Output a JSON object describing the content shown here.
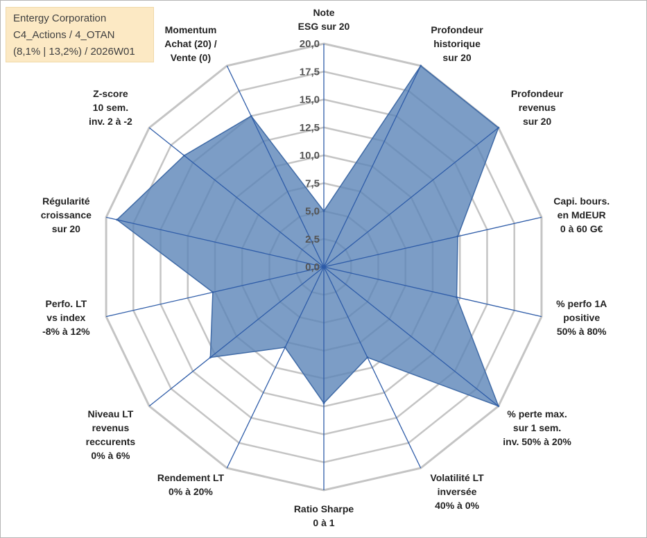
{
  "info": {
    "line1": "Entergy Corporation",
    "line2": "C4_Actions / 4_OTAN",
    "line3": "(8,1% | 13,2%) / 2026W01"
  },
  "colors": {
    "fill": "#5b84b8",
    "stroke": "#3f6aa6",
    "grid": "#c4c4c4",
    "spoke": "#2e5ca8"
  },
  "chart_data": {
    "type": "radar",
    "title": "",
    "range": [
      0,
      20
    ],
    "ticks": [
      "0,0",
      "2,5",
      "5,0",
      "7,5",
      "10,0",
      "12,5",
      "15,0",
      "17,5",
      "20,0"
    ],
    "tick_values": [
      0,
      2.5,
      5,
      7.5,
      10,
      12.5,
      15,
      17.5,
      20
    ],
    "axes": [
      {
        "label": [
          "Note",
          "ESG sur 20"
        ],
        "value": 5.0
      },
      {
        "label": [
          "Profondeur",
          "historique",
          "sur 20"
        ],
        "value": 20.0
      },
      {
        "label": [
          "Profondeur",
          "revenus",
          "sur 20"
        ],
        "value": 20.0
      },
      {
        "label": [
          "Capi. bours.",
          "en MdEUR",
          "0 à 60 G€"
        ],
        "value": 12.3
      },
      {
        "label": [
          "% perfo 1A",
          "positive",
          "50% à 80%"
        ],
        "value": 12.2
      },
      {
        "label": [
          "% perte max.",
          "sur 1 sem.",
          "inv. 50% à 20%"
        ],
        "value": 20.0
      },
      {
        "label": [
          "Volatilité LT",
          "inversée",
          "40% à 0%"
        ],
        "value": 9.0
      },
      {
        "label": [
          "Ratio Sharpe",
          "0 à 1"
        ],
        "value": 12.2
      },
      {
        "label": [
          "Rendement LT",
          "0% à 20%"
        ],
        "value": 8.0
      },
      {
        "label": [
          "Niveau LT",
          "revenus",
          "reccurents",
          "0% à 6%"
        ],
        "value": 13.0
      },
      {
        "label": [
          "Perfo. LT",
          "vs index",
          "-8% à 12%"
        ],
        "value": 10.2
      },
      {
        "label": [
          "Régularité",
          "croissance",
          "sur 20"
        ],
        "value": 19.0
      },
      {
        "label": [
          "Z-score",
          "10 sem.",
          "inv. 2 à -2"
        ],
        "value": 16.0
      },
      {
        "label": [
          "Momentum",
          "Achat (20) /",
          "Vente (0)"
        ],
        "value": 15.0
      }
    ]
  }
}
